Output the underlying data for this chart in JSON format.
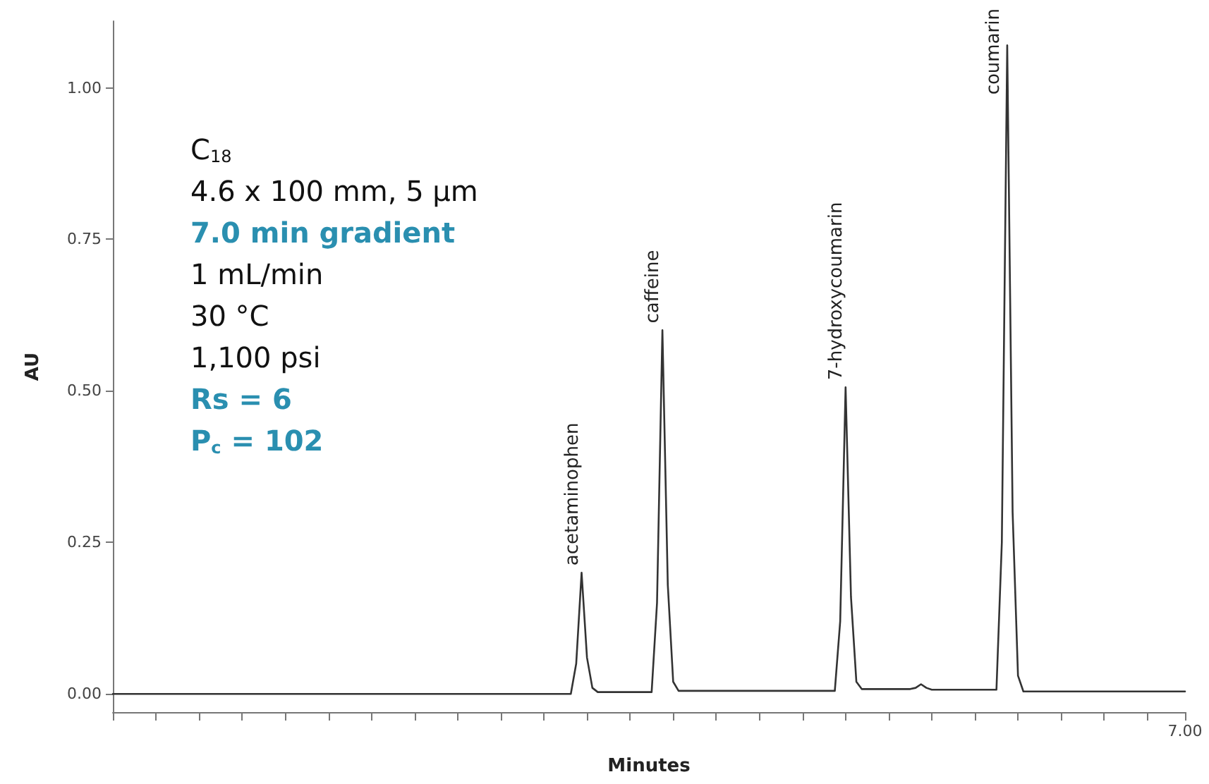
{
  "chart_data": {
    "type": "line",
    "xlabel": "Minutes",
    "ylabel": "AU",
    "categories": [
      null,
      null,
      null,
      null,
      null,
      null,
      null,
      null,
      null,
      null,
      null,
      null,
      null,
      null,
      null,
      null,
      null,
      null,
      null,
      null,
      null,
      null,
      null,
      null,
      null,
      null,
      null,
      null,
      null,
      null,
      null,
      null,
      null,
      null,
      null,
      null,
      null,
      null,
      null,
      null,
      null,
      null,
      null,
      null,
      null,
      null,
      null,
      null,
      null,
      null,
      null,
      null,
      null,
      null,
      null,
      null,
      null,
      null,
      null,
      null,
      null,
      null,
      null,
      null,
      null,
      null,
      null,
      null,
      null,
      null,
      null,
      null,
      null,
      null,
      null,
      null,
      null,
      null,
      null,
      null,
      null,
      null,
      null,
      null,
      null,
      null,
      null,
      null,
      null,
      null,
      null,
      null,
      null,
      null,
      null,
      null,
      null,
      null,
      null,
      null,
      null,
      null,
      null,
      null,
      null,
      null,
      null,
      null,
      null,
      null,
      null,
      null,
      null,
      null,
      null,
      null,
      null,
      null,
      null,
      null,
      null,
      null,
      null,
      null,
      null,
      null,
      null,
      null,
      null,
      null,
      null,
      null,
      null,
      null,
      null,
      null,
      null,
      null,
      null,
      null,
      null,
      null,
      null,
      null,
      null,
      null,
      null,
      null,
      null,
      null,
      null,
      null,
      null,
      null,
      null,
      null,
      null,
      null,
      null,
      null,
      null,
      null,
      null,
      null,
      null,
      null,
      null,
      null,
      null,
      null,
      null,
      null,
      null,
      null,
      null,
      null,
      null,
      null,
      null,
      null,
      null,
      null,
      null,
      null,
      null,
      null,
      null,
      null,
      null,
      null,
      null,
      null,
      null,
      null,
      null,
      null,
      null,
      null,
      null,
      "7.00"
    ],
    "ylim": [
      -0.03,
      1.11
    ],
    "yticks": [
      {
        "value": 0,
        "label": "0.00"
      },
      {
        "value": 0.25,
        "label": "0.25"
      },
      {
        "value": 0.5,
        "label": "0.50"
      },
      {
        "value": 0.75,
        "label": "0.75"
      },
      {
        "value": 1,
        "label": "1.00"
      }
    ],
    "grid": false,
    "marker": "none",
    "line_style": "solid",
    "series": [
      {
        "color": "#333333",
        "values": [
          0,
          0,
          0,
          0,
          0,
          0,
          0,
          0,
          0,
          0,
          0,
          0,
          0,
          0,
          0,
          0,
          0,
          0,
          0,
          0,
          0,
          0,
          0,
          0,
          0,
          0,
          0,
          0,
          0,
          0,
          0,
          0,
          0,
          0,
          0,
          0,
          0,
          0,
          0,
          0,
          0,
          0,
          0,
          0,
          0,
          0,
          0,
          0,
          0,
          0,
          0,
          0,
          0,
          0,
          0,
          0,
          0,
          0,
          0,
          0,
          0,
          0,
          0,
          0,
          0,
          0,
          0,
          0,
          0,
          0,
          0,
          0,
          0,
          0,
          0,
          0,
          0,
          0,
          0,
          0,
          0,
          0,
          0,
          0,
          0,
          0,
          0.05,
          0.2,
          0.06,
          0.01,
          0.003,
          0.003,
          0.003,
          0.003,
          0.003,
          0.003,
          0.003,
          0.003,
          0.003,
          0.003,
          0.003,
          0.15,
          0.6,
          0.18,
          0.02,
          0.005,
          0.005,
          0.005,
          0.005,
          0.005,
          0.005,
          0.005,
          0.005,
          0.005,
          0.005,
          0.005,
          0.005,
          0.005,
          0.005,
          0.005,
          0.005,
          0.005,
          0.005,
          0.005,
          0.005,
          0.005,
          0.005,
          0.005,
          0.005,
          0.005,
          0.005,
          0.005,
          0.005,
          0.005,
          0.005,
          0.12,
          0.506,
          0.16,
          0.02,
          0.008,
          0.008,
          0.008,
          0.008,
          0.008,
          0.008,
          0.008,
          0.008,
          0.008,
          0.008,
          0.01,
          0.016,
          0.01,
          0.007,
          0.007,
          0.007,
          0.007,
          0.007,
          0.007,
          0.007,
          0.007,
          0.007,
          0.007,
          0.007,
          0.007,
          0.007,
          0.25,
          1.07,
          0.3,
          0.03,
          0.004,
          0.004,
          0.004,
          0.004,
          0.004,
          0.004,
          0.004,
          0.004,
          0.004,
          0.004,
          0.004,
          0.004,
          0.004,
          0.004,
          0.004,
          0.004,
          0.004,
          0.004,
          0.004,
          0.004,
          0.004,
          0.004,
          0.004,
          0.004,
          0.004,
          0.004,
          0.004,
          0.004,
          0.004,
          0.004,
          0.004
        ]
      }
    ],
    "annotations": [
      "C$_{18}$\n4.6 x 100 mm, 5 µm\n7.0 min gradient\n1 mL/min\n30 °C\n1,100 psi\nRs = 6\nP$_{c}$ = 102",
      "acetaminophen",
      "caffeine",
      "7-hydroxycoumarin",
      "coumarin"
    ]
  }
}
